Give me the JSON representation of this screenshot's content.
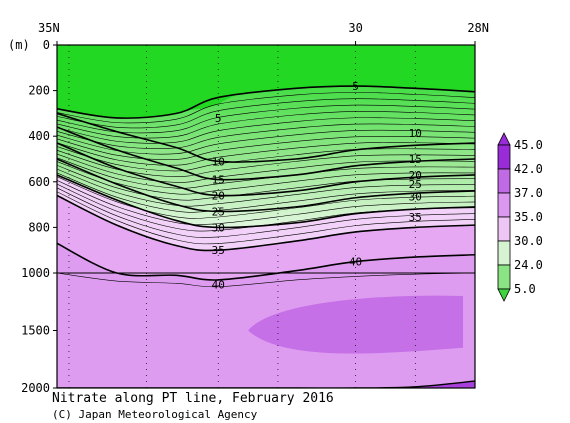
{
  "chart_data": {
    "type": "contour",
    "title": "Nitrate along PT line, February 2016",
    "credit": "(C) Japan Meteorological Agency",
    "ylabel": "(m)",
    "x_range": [
      35,
      28
    ],
    "x_ticks": [
      {
        "lat": 35,
        "label": "35N"
      },
      {
        "lat": 30,
        "label": "30"
      },
      {
        "lat": 28,
        "label": "28N"
      }
    ],
    "depth_ticks": [
      {
        "depth": 0,
        "label": "0"
      },
      {
        "depth": 200,
        "label": "200"
      },
      {
        "depth": 400,
        "label": "400"
      },
      {
        "depth": 600,
        "label": "600"
      },
      {
        "depth": 800,
        "label": "800"
      },
      {
        "depth": 1000,
        "label": "1000"
      },
      {
        "depth": 1500,
        "label": "1500"
      },
      {
        "depth": 2000,
        "label": "2000"
      }
    ],
    "y_axis_note": "depth axis is linear 0-1000 m in the upper part and 1000-2000 m compressed below",
    "station_lats": [
      34.8,
      33.5,
      32.3,
      31.3,
      30.0,
      29.0
    ],
    "contours": [
      {
        "level": 5,
        "depth": [
          280,
          320,
          300,
          230,
          190,
          180,
          190,
          205
        ],
        "label": "5",
        "label_lat": 30.0
      },
      {
        "level": 10,
        "depth": [
          300,
          380,
          450,
          510,
          500,
          460,
          440,
          430
        ],
        "label": "10",
        "label_lat": 32.3
      },
      {
        "level": 15,
        "depth": [
          360,
          460,
          540,
          590,
          570,
          530,
          510,
          500
        ],
        "label": "15",
        "label_lat": 32.3
      },
      {
        "level": 20,
        "depth": [
          430,
          540,
          620,
          660,
          640,
          600,
          580,
          570
        ],
        "label": "20",
        "label_lat": 32.3
      },
      {
        "level": 25,
        "depth": [
          500,
          610,
          700,
          730,
          710,
          670,
          650,
          640
        ],
        "label": "25",
        "label_lat": 32.3
      },
      {
        "level": 30,
        "depth": [
          570,
          680,
          770,
          800,
          780,
          740,
          720,
          710
        ],
        "label": "30",
        "label_lat": 32.3
      },
      {
        "level": 35,
        "depth": [
          660,
          790,
          880,
          900,
          860,
          820,
          800,
          790
        ],
        "label": "35",
        "label_lat": 32.3
      },
      {
        "level": 40,
        "depth": [
          870,
          1000,
          1020,
          1060,
          990,
          950,
          930,
          920
        ],
        "label": "40",
        "label_lat": 30.0
      }
    ],
    "contour_lats": [
      35.0,
      34.0,
      33.0,
      32.3,
      31.0,
      30.0,
      29.0,
      28.0
    ],
    "extra_labels": [
      {
        "label": "5",
        "lat": 32.3,
        "depth": 320
      },
      {
        "label": "10",
        "lat": 29.0,
        "depth": 385
      },
      {
        "label": "15",
        "lat": 29.0,
        "depth": 500
      },
      {
        "label": "20",
        "lat": 29.0,
        "depth": 570
      },
      {
        "label": "25",
        "lat": 29.0,
        "depth": 610
      },
      {
        "label": "30",
        "lat": 29.0,
        "depth": 665
      },
      {
        "label": "35",
        "lat": 29.0,
        "depth": 755
      },
      {
        "label": "40",
        "lat": 32.3,
        "depth": 1100
      }
    ],
    "colorbar": {
      "labels": [
        "45.0",
        "42.0",
        "37.0",
        "35.0",
        "30.0",
        "24.0",
        "5.0"
      ],
      "colors": [
        "#9a2bd8",
        "#c06ae6",
        "#dc98f0",
        "#eec6f6",
        "#d6f4d2",
        "#8ae484",
        "#3ed43e"
      ]
    },
    "fill_colors": {
      "lt5": "#22d822",
      "low": "#44dd44",
      "mid": "#9be894",
      "high": "#e2f7df",
      "n35": "#f2d2f8",
      "n37": "#e6a8f2",
      "n40": "#de9cf0",
      "n42": "#c670e8",
      "core": "#c670e8",
      "n45": "#a840dc"
    }
  }
}
